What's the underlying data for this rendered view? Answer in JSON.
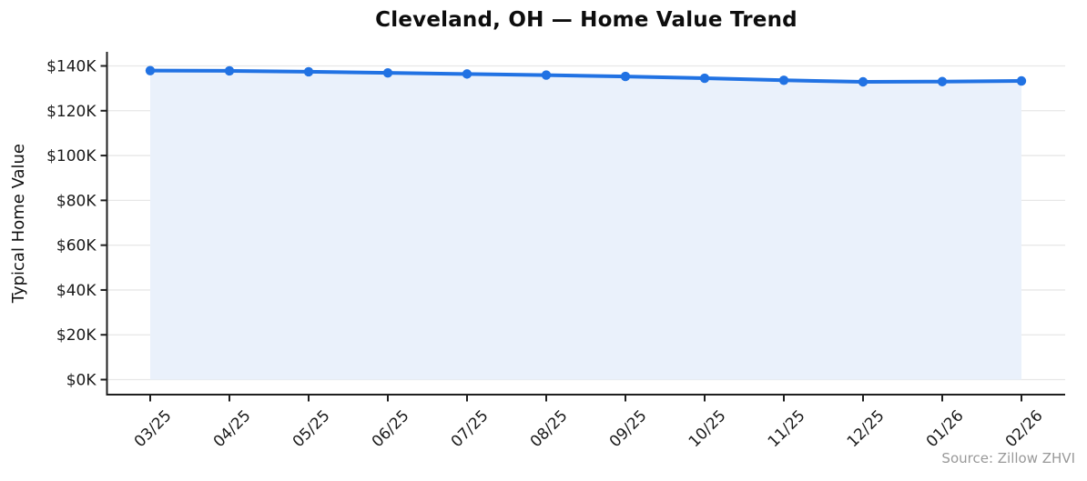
{
  "title": "Cleveland, OH — Home Value Trend",
  "source_note": "Source: Zillow ZHVI",
  "chart_data": {
    "type": "line",
    "area_fill": true,
    "title": "Cleveland, OH — Home Value Trend",
    "xlabel": "",
    "ylabel": "Typical Home Value",
    "categories": [
      "03/25",
      "04/25",
      "05/25",
      "06/25",
      "07/25",
      "08/25",
      "09/25",
      "10/25",
      "11/25",
      "12/25",
      "01/26",
      "02/26"
    ],
    "series": [
      {
        "name": "Typical Home Value",
        "values": [
          137900,
          137800,
          137400,
          136900,
          136400,
          135900,
          135300,
          134500,
          133600,
          132900,
          133000,
          133300
        ]
      }
    ],
    "ylim": [
      0,
      147000
    ],
    "ytick_values": [
      0,
      20000,
      40000,
      60000,
      80000,
      100000,
      120000,
      140000
    ],
    "ytick_labels": [
      "$0K",
      "$20K",
      "$40K",
      "$60K",
      "$80K",
      "$100K",
      "$120K",
      "$140K"
    ],
    "grid": true,
    "legend": null,
    "marker": "circle",
    "line_color": "#2172e3",
    "marker_color": "#2172e3",
    "fill_color": "#eaf1fb",
    "grid_color": "#e7e7e7",
    "axis_color": "#1f1f1f",
    "tick_label_color": "#1a1a1a",
    "source_color": "#999999"
  }
}
